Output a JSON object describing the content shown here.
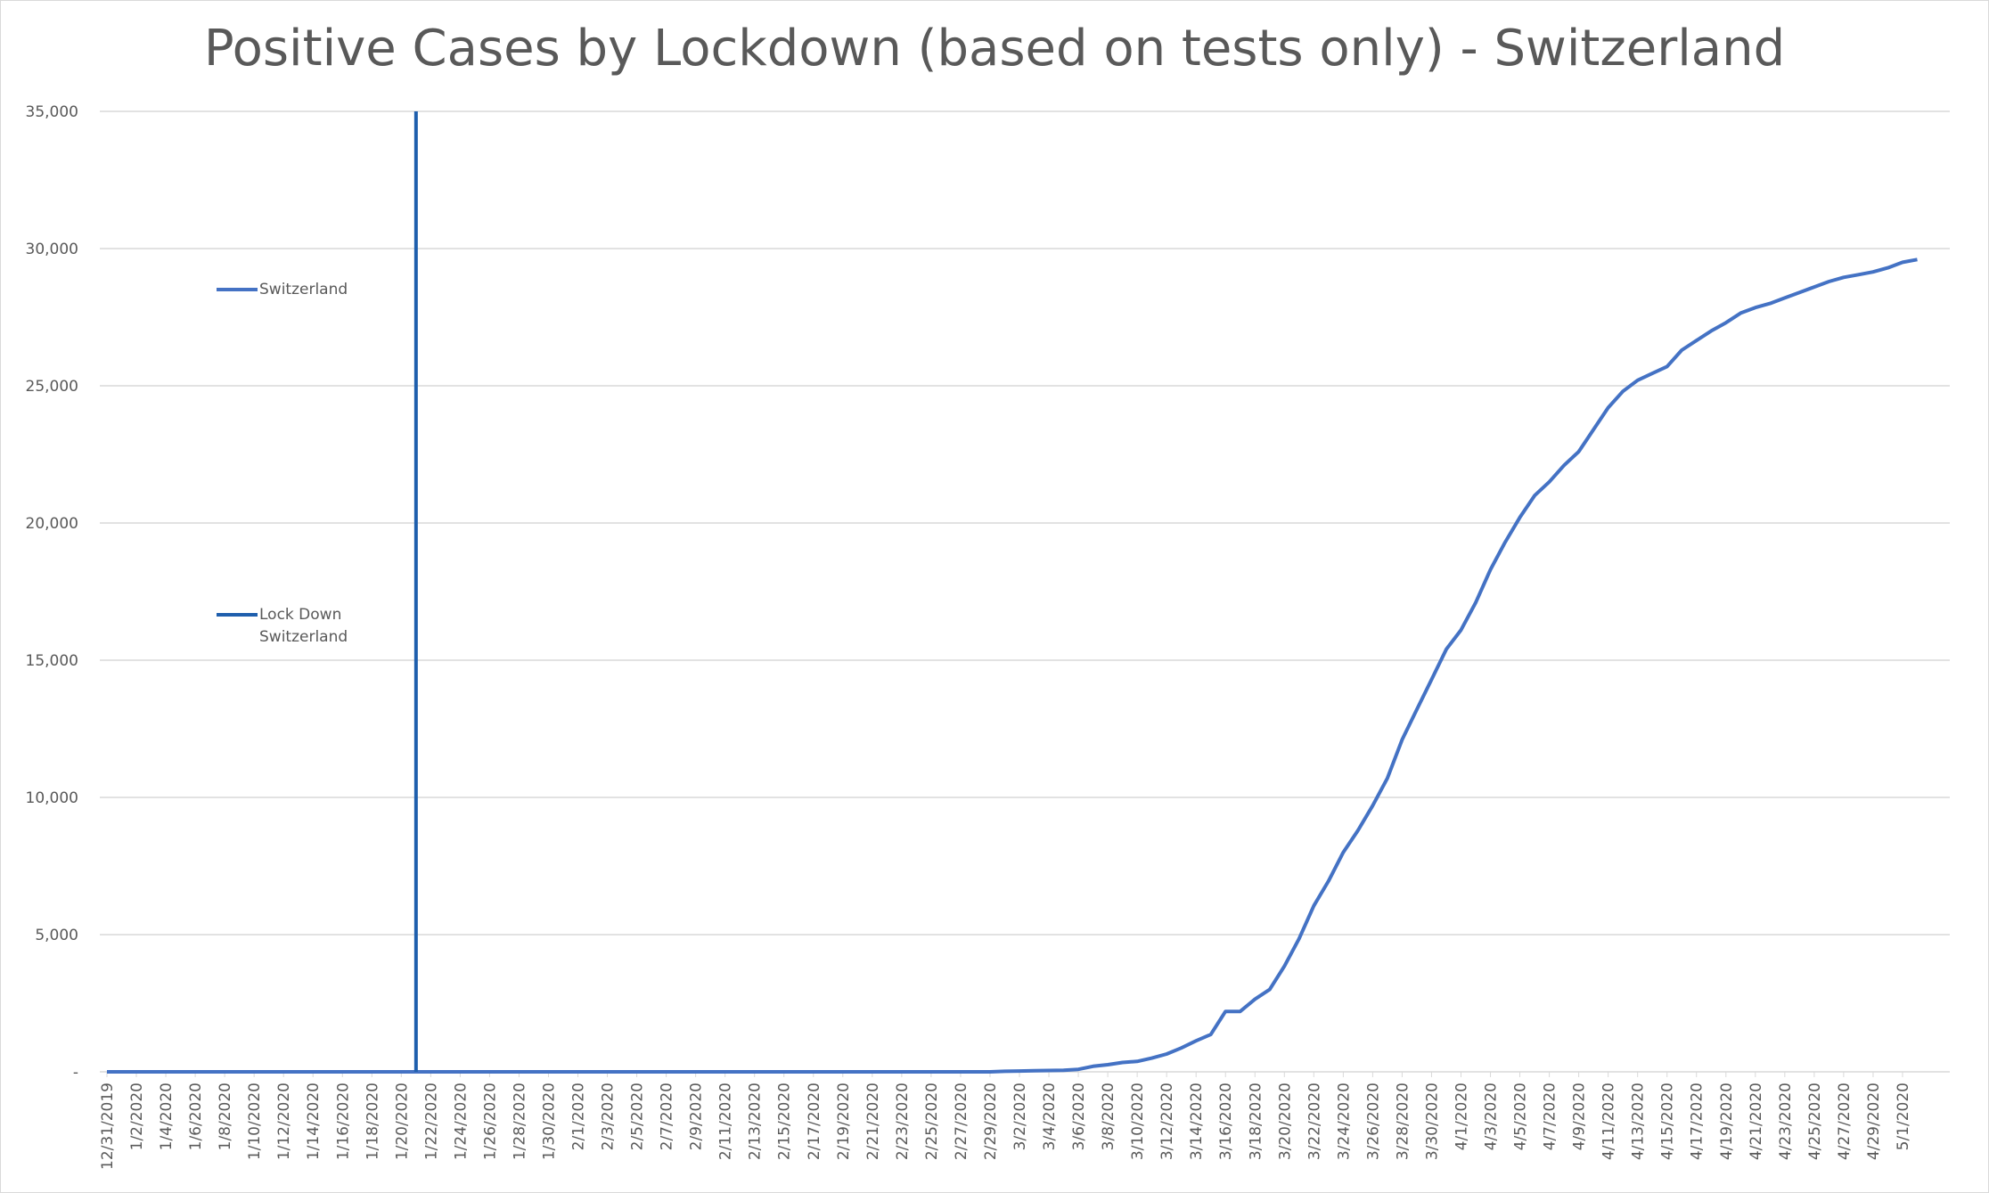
{
  "chart_data": {
    "type": "line",
    "title": "Positive Cases by Lockdown (based on tests only) - Switzerland",
    "xlabel": "",
    "ylabel": "",
    "ylim": [
      0,
      35000
    ],
    "y_ticks": [
      "-",
      "5,000",
      "10,000",
      "15,000",
      "20,000",
      "25,000",
      "30,000",
      "35,000"
    ],
    "grid": "horizontal",
    "legend_position": "left",
    "x_tick_labels": [
      "12/31/2019",
      "1/2/2020",
      "1/4/2020",
      "1/6/2020",
      "1/8/2020",
      "1/10/2020",
      "1/12/2020",
      "1/14/2020",
      "1/16/2020",
      "1/18/2020",
      "1/20/2020",
      "1/22/2020",
      "1/24/2020",
      "1/26/2020",
      "1/28/2020",
      "1/30/2020",
      "2/1/2020",
      "2/3/2020",
      "2/5/2020",
      "2/7/2020",
      "2/9/2020",
      "2/11/2020",
      "2/13/2020",
      "2/15/2020",
      "2/17/2020",
      "2/19/2020",
      "2/21/2020",
      "2/23/2020",
      "2/25/2020",
      "2/27/2020",
      "2/29/2020",
      "3/2/2020",
      "3/4/2020",
      "3/6/2020",
      "3/8/2020",
      "3/10/2020",
      "3/12/2020",
      "3/14/2020",
      "3/16/2020",
      "3/18/2020",
      "3/20/2020",
      "3/22/2020",
      "3/24/2020",
      "3/26/2020",
      "3/28/2020",
      "3/30/2020",
      "4/1/2020",
      "4/3/2020",
      "4/5/2020",
      "4/7/2020",
      "4/9/2020",
      "4/11/2020",
      "4/13/2020",
      "4/15/2020",
      "4/17/2020",
      "4/19/2020",
      "4/21/2020",
      "4/23/2020",
      "4/25/2020",
      "4/27/2020",
      "4/29/2020",
      "5/1/2020"
    ],
    "series": [
      {
        "name": "Switzerland",
        "color": "#4472c4",
        "x_dates": [
          "3/1/2020",
          "3/2/2020",
          "3/3/2020",
          "3/4/2020",
          "3/5/2020",
          "3/6/2020",
          "3/7/2020",
          "3/8/2020",
          "3/9/2020",
          "3/10/2020",
          "3/11/2020",
          "3/12/2020",
          "3/13/2020",
          "3/14/2020",
          "3/15/2020",
          "3/16/2020",
          "3/17/2020",
          "3/18/2020",
          "3/19/2020",
          "3/20/2020",
          "3/21/2020",
          "3/22/2020",
          "3/23/2020",
          "3/24/2020",
          "3/25/2020",
          "3/26/2020",
          "3/27/2020",
          "3/28/2020",
          "3/29/2020",
          "3/30/2020",
          "3/31/2020",
          "4/1/2020",
          "4/2/2020",
          "4/3/2020",
          "4/4/2020",
          "4/5/2020",
          "4/6/2020",
          "4/7/2020",
          "4/8/2020",
          "4/9/2020",
          "4/10/2020",
          "4/11/2020",
          "4/12/2020",
          "4/13/2020",
          "4/14/2020",
          "4/15/2020",
          "4/16/2020",
          "4/17/2020",
          "4/18/2020",
          "4/19/2020",
          "4/20/2020",
          "4/21/2020",
          "4/22/2020",
          "4/23/2020",
          "4/24/2020",
          "4/25/2020",
          "4/26/2020",
          "4/27/2020",
          "4/28/2020",
          "4/29/2020",
          "4/30/2020",
          "5/1/2020",
          "5/2/2020"
        ],
        "values": [
          20,
          30,
          40,
          50,
          60,
          90,
          200,
          260,
          340,
          380,
          500,
          650,
          870,
          1130,
          1360,
          2200,
          2200,
          2650,
          3000,
          3850,
          4850,
          6050,
          6950,
          8000,
          8800,
          9700,
          10700,
          12100,
          13200,
          14300,
          15400,
          16100,
          17100,
          18300,
          19300,
          20200,
          21000,
          21500,
          22100,
          22600,
          23400,
          24200,
          24800,
          25200,
          25450,
          25700,
          26300,
          26650,
          27000,
          27300,
          27650,
          27850,
          28000,
          28200,
          28400,
          28600,
          28800,
          28950,
          29050,
          29150,
          29300,
          29500,
          29600
        ],
        "stroke_width": 4
      }
    ],
    "reference_line": {
      "name": "Lock Down Switzerland",
      "color": "#1f5fad",
      "x_date": "1/21/2020",
      "stroke_width": 4
    }
  }
}
